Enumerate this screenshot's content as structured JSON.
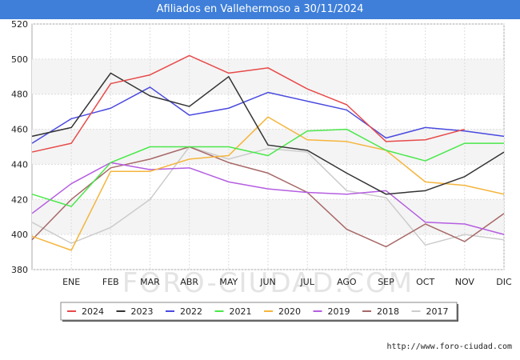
{
  "chart_data": {
    "type": "line",
    "title": "Afiliados en Vallehermoso a 30/11/2024",
    "categories": [
      "",
      "ENE",
      "FEB",
      "MAR",
      "ABR",
      "MAY",
      "JUN",
      "JUL",
      "AGO",
      "SEP",
      "OCT",
      "NOV",
      "DIC"
    ],
    "ylim": [
      380,
      520
    ],
    "yticks": [
      380,
      400,
      420,
      440,
      460,
      480,
      500,
      520
    ],
    "grid": true,
    "legend_position": "bottom",
    "series": [
      {
        "name": "2024",
        "color": "#e84a4a",
        "values": [
          447,
          452,
          486,
          491,
          502,
          492,
          495,
          483,
          474,
          453,
          454,
          460,
          null
        ]
      },
      {
        "name": "2023",
        "color": "#333333",
        "values": [
          456,
          461,
          492,
          479,
          473,
          490,
          451,
          448,
          435,
          423,
          425,
          433,
          447
        ]
      },
      {
        "name": "2022",
        "color": "#4a4ae0",
        "values": [
          452,
          466,
          472,
          484,
          468,
          472,
          481,
          476,
          471,
          455,
          461,
          459,
          456
        ]
      },
      {
        "name": "2021",
        "color": "#4ae84a",
        "values": [
          423,
          416,
          441,
          450,
          450,
          450,
          445,
          459,
          460,
          448,
          442,
          452,
          452
        ]
      },
      {
        "name": "2020",
        "color": "#f5b53d",
        "values": [
          399,
          391,
          436,
          436,
          443,
          445,
          467,
          454,
          453,
          448,
          430,
          428,
          423
        ]
      },
      {
        "name": "2019",
        "color": "#b55ee0",
        "values": [
          412,
          429,
          441,
          437,
          438,
          430,
          426,
          424,
          423,
          425,
          407,
          406,
          400
        ]
      },
      {
        "name": "2018",
        "color": "#a86868",
        "values": [
          397,
          420,
          438,
          443,
          450,
          441,
          435,
          424,
          403,
          393,
          406,
          396,
          412
        ]
      },
      {
        "name": "2017",
        "color": "#cccccc",
        "values": [
          407,
          395,
          404,
          420,
          450,
          443,
          449,
          447,
          425,
          421,
          394,
          400,
          397
        ]
      }
    ]
  },
  "footer": {
    "source": "http://www.foro-ciudad.com",
    "watermark": "FORO-CIUDAD.COM"
  }
}
